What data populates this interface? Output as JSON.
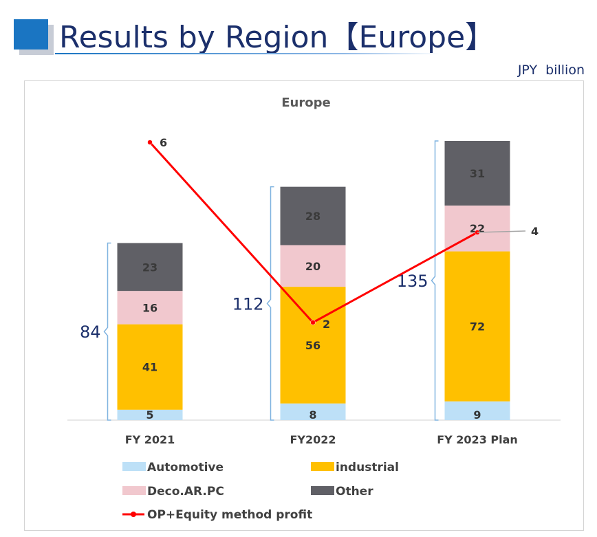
{
  "slide": {
    "title": "Results by Region【Europe】",
    "unit": "JPY  billion"
  },
  "colors": {
    "automotive": "#bde0f7",
    "industrial": "#ffc000",
    "deco": "#f1c8ce",
    "other": "#606066",
    "line": "#ff0000",
    "title_blue": "#1b2f6b",
    "accent_blue": "#1a75c2"
  },
  "chart_data": {
    "type": "bar",
    "stacked": true,
    "title": "Europe",
    "categories": [
      "FY 2021",
      "FY2022",
      "FY 2023 Plan"
    ],
    "series": [
      {
        "name": "Automotive",
        "values": [
          5,
          8,
          9
        ]
      },
      {
        "name": "industrial",
        "values": [
          41,
          56,
          72
        ]
      },
      {
        "name": "Deco.AR.PC",
        "values": [
          16,
          20,
          22
        ]
      },
      {
        "name": "Other",
        "values": [
          23,
          28,
          31
        ]
      }
    ],
    "totals": [
      "84",
      "112",
      "135"
    ],
    "line_series": {
      "name": "OP+Equity method profit",
      "values": [
        6,
        2,
        4
      ]
    },
    "legend_position": "bottom"
  }
}
